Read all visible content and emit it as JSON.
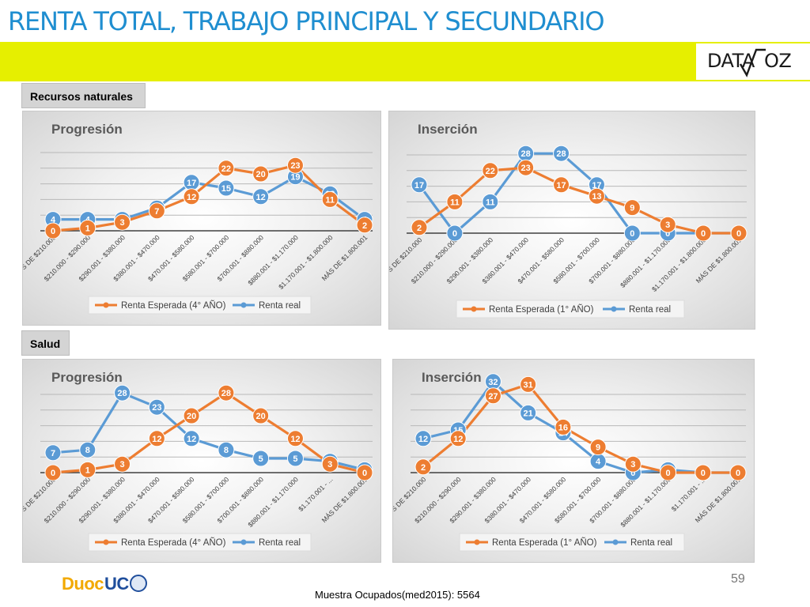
{
  "header": {
    "title": "RENTA TOTAL, TRABAJO PRINCIPAL Y SECUNDARIO",
    "logo_left": "DATA",
    "logo_right": "OZ",
    "title_color": "#1f8ed0",
    "band_color": "#e6ef00"
  },
  "sections": {
    "recursos": "Recursos naturales",
    "salud": "Salud"
  },
  "footer": {
    "page_number": "59",
    "note": "Muestra Ocupados(med2015): 5564",
    "brand_a": "Duoc",
    "brand_b": "UC"
  },
  "colors": {
    "expected": "#ed7d31",
    "real": "#5b9bd5",
    "axis": "#404040"
  },
  "chart_data": [
    {
      "id": "rn-progresion",
      "type": "line",
      "title": "Progresión",
      "categories": [
        "MENOS DE $210.000",
        "$210.000 - $290.000",
        "$290.001 - $380.000",
        "$380.001 - $470.000",
        "$470.001 - $580.000",
        "$580.001 - $700.000",
        "$700.001 - $880.000",
        "$880.001 - $1.170.000",
        "$1.170.001 - $1.800.000",
        "MÁS DE $1.800.001"
      ],
      "series": [
        {
          "name": "Renta Esperada (4° AÑO)",
          "color": "#ed7d31",
          "values": [
            0,
            1,
            3,
            7,
            12,
            22,
            20,
            23,
            11,
            2
          ]
        },
        {
          "name": "Renta real",
          "color": "#5b9bd5",
          "values": [
            4,
            4,
            4,
            8,
            17,
            15,
            12,
            19,
            13,
            4
          ]
        }
      ],
      "ylim": [
        0,
        35
      ],
      "legend": "bottom",
      "grid": true
    },
    {
      "id": "rn-insercion",
      "type": "line",
      "title": "Inserción",
      "categories": [
        "MENOS DE $210.000",
        "$210.000 - $290.000",
        "$290.001 - $380.000",
        "$380.001 - $470.000",
        "$470.001 - $580.000",
        "$580.001 - $700.000",
        "$700.001 - $880.000",
        "$880.001 - $1.170.000",
        "$1.170.001 - $1.800.000",
        "MÁS DE $1.800.001"
      ],
      "series": [
        {
          "name": "Renta Esperada (1° AÑO)",
          "color": "#ed7d31",
          "values": [
            2,
            11,
            22,
            23,
            17,
            13,
            9,
            3,
            0,
            0
          ]
        },
        {
          "name": "Renta real",
          "color": "#5b9bd5",
          "values": [
            17,
            0,
            11,
            28,
            28,
            17,
            0,
            0,
            0,
            0
          ]
        }
      ],
      "ylim": [
        0,
        35
      ],
      "legend": "bottom",
      "grid": true
    },
    {
      "id": "salud-progresion",
      "type": "line",
      "title": "Progresión",
      "categories": [
        "MENOS DE $210.000",
        "$210.000 - $290.000",
        "$290.001 - $380.000",
        "$380.001 - $470.000",
        "$470.001 - $580.000",
        "$580.001 - $700.000",
        "$700.001 - $880.000",
        "$880.001 - $1.170.000",
        "$1.170.001 - ...",
        "MÁS DE $1.800.001"
      ],
      "series": [
        {
          "name": "Renta Esperada (4° AÑO)",
          "color": "#ed7d31",
          "values": [
            0,
            1,
            3,
            12,
            20,
            28,
            20,
            12,
            3,
            0
          ]
        },
        {
          "name": "Renta real",
          "color": "#5b9bd5",
          "values": [
            7,
            8,
            28,
            23,
            12,
            8,
            5,
            5,
            4,
            1
          ]
        }
      ],
      "ylim": [
        0,
        35
      ],
      "legend": "bottom",
      "grid": true
    },
    {
      "id": "salud-insercion",
      "type": "line",
      "title": "Inserción",
      "categories": [
        "MENOS DE $210.000",
        "$210.000 - $290.000",
        "$290.001 - $380.000",
        "$380.001 - $470.000",
        "$470.001 - $580.000",
        "$580.001 - $700.000",
        "$700.001 - $880.000",
        "$880.001 - $1.170.000",
        "$1.170.001 - ...",
        "MÁS DE $1.800.001"
      ],
      "series": [
        {
          "name": "Renta Esperada (1° AÑO)",
          "color": "#ed7d31",
          "values": [
            2,
            12,
            27,
            31,
            16,
            9,
            3,
            0,
            0,
            0
          ]
        },
        {
          "name": "Renta real",
          "color": "#5b9bd5",
          "values": [
            12,
            15,
            32,
            21,
            14,
            4,
            0,
            1,
            0,
            0
          ]
        }
      ],
      "ylim": [
        0,
        35
      ],
      "legend": "bottom",
      "grid": true
    }
  ]
}
